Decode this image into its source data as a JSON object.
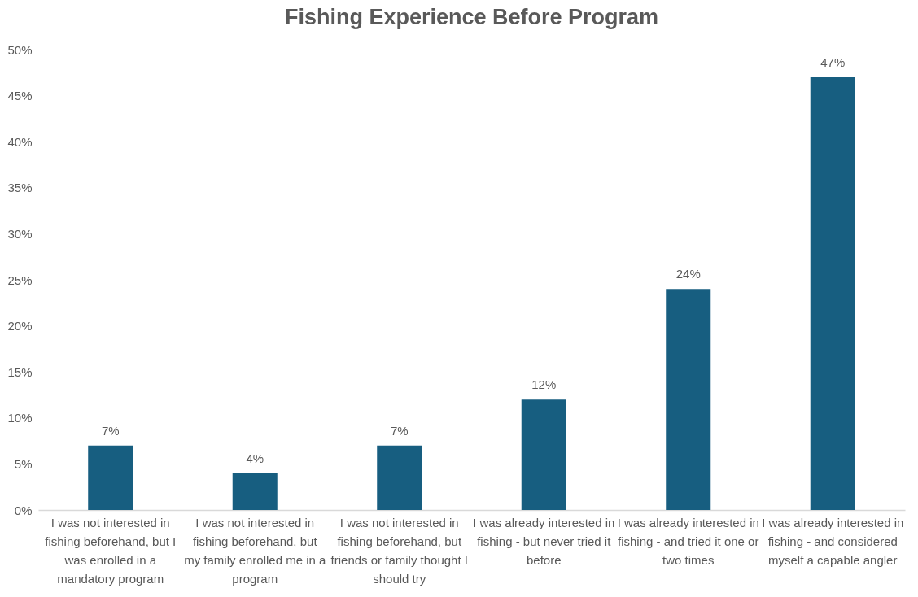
{
  "chart_data": {
    "type": "bar",
    "title": "Fishing Experience Before Program",
    "categories": [
      "I was not interested in fishing beforehand, but I was enrolled in a mandatory program",
      "I was not interested in fishing beforehand, but my family enrolled me in a program",
      "I was not interested in fishing beforehand, but friends or family thought I should try",
      "I was already interested in fishing - but never tried it before",
      "I was already interested in fishing - and tried it one or two times",
      "I was already interested in fishing - and considered myself a capable angler"
    ],
    "values": [
      7,
      4,
      7,
      12,
      24,
      47
    ],
    "value_labels": [
      "7%",
      "4%",
      "7%",
      "12%",
      "24%",
      "47%"
    ],
    "color": "#175e80",
    "ylim": [
      0,
      50
    ],
    "yticks": [
      {
        "value": 0,
        "label": "0%"
      },
      {
        "value": 5,
        "label": "5%"
      },
      {
        "value": 10,
        "label": "10%"
      },
      {
        "value": 15,
        "label": "15%"
      },
      {
        "value": 20,
        "label": "20%"
      },
      {
        "value": 25,
        "label": "25%"
      },
      {
        "value": 30,
        "label": "30%"
      },
      {
        "value": 35,
        "label": "35%"
      },
      {
        "value": 40,
        "label": "40%"
      },
      {
        "value": 45,
        "label": "45%"
      },
      {
        "value": 50,
        "label": "50%"
      }
    ]
  }
}
